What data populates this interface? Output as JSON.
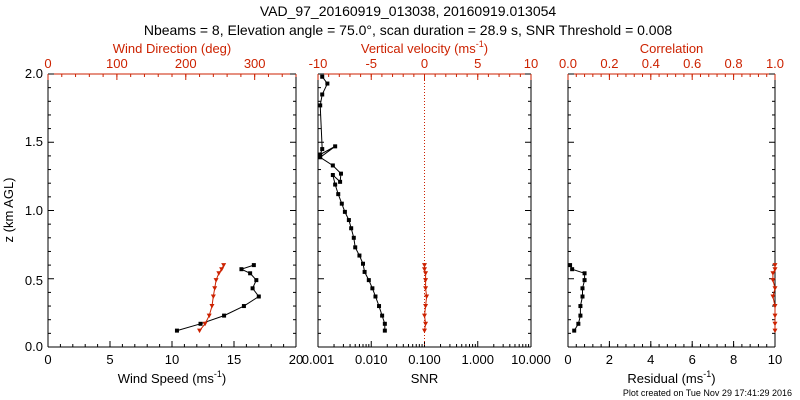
{
  "title_line1": "VAD_97_20160919_013038, 20160919.013054",
  "title_line2": "Nbeams = 8, Elevation angle = 75.0°, scan duration = 28.9 s, SNR Threshold = 0.008",
  "footer": "Plot created on Tue Nov 29 17:41:29 2016",
  "colors": {
    "black": "#000000",
    "red": "#cc2200"
  },
  "chart_data": [
    {
      "type": "line",
      "ylabel": "z (km AGL)",
      "ylim": [
        0,
        2
      ],
      "yticks": [
        "0.0",
        "0.5",
        "1.0",
        "1.5",
        "2.0"
      ],
      "bottom_axis": {
        "label": "Wind Speed (ms",
        "label_sup": "-1",
        "label_end": ")",
        "range": [
          0,
          20
        ],
        "ticks": [
          "0",
          "5",
          "10",
          "15",
          "20"
        ]
      },
      "top_axis": {
        "label": "Wind Direction (deg)",
        "range": [
          0,
          360
        ],
        "ticks": [
          "0",
          "100",
          "200",
          "300"
        ],
        "tick_values": [
          0,
          100,
          200,
          300
        ]
      },
      "series": [
        {
          "axis": "bottom",
          "color": "#000000",
          "marker": "square",
          "x": [
            10.4,
            12.3,
            14.2,
            15.8,
            17.0,
            16.5,
            16.8,
            16.3,
            15.6,
            16.6
          ],
          "y": [
            0.12,
            0.17,
            0.23,
            0.3,
            0.37,
            0.43,
            0.49,
            0.54,
            0.57,
            0.6
          ]
        },
        {
          "axis": "top",
          "color": "#cc2200",
          "marker": "triangle",
          "x": [
            220,
            228,
            234,
            238,
            240,
            242,
            244,
            248,
            252,
            255
          ],
          "y": [
            0.12,
            0.17,
            0.23,
            0.3,
            0.37,
            0.43,
            0.49,
            0.54,
            0.57,
            0.6
          ]
        }
      ]
    },
    {
      "type": "line",
      "ylim": [
        0,
        2
      ],
      "bottom_axis": {
        "label": "SNR",
        "scale": "log",
        "range": [
          0.001,
          10
        ],
        "ticks": [
          "0.001",
          "0.010",
          "0.100",
          "1.000",
          "10.000"
        ]
      },
      "top_axis": {
        "label": "Vertical velocity (ms",
        "label_sup": "-1",
        "label_end": ")",
        "range": [
          -10,
          10
        ],
        "ticks": [
          "-10",
          "-5",
          "0",
          "5",
          "10"
        ],
        "tick_values": [
          -10,
          -5,
          0,
          5,
          10
        ]
      },
      "reference_line": {
        "axis": "top",
        "x": 0,
        "color": "#cc2200",
        "style": "dotted"
      },
      "series": [
        {
          "axis": "bottom",
          "color": "#000000",
          "marker": "square",
          "x": [
            0.018,
            0.018,
            0.016,
            0.014,
            0.012,
            0.0105,
            0.009,
            0.0075,
            0.007,
            0.006,
            0.005,
            0.0047,
            0.0042,
            0.0038,
            0.0032,
            0.0028,
            0.0024,
            0.0021,
            0.0019,
            0.0026,
            0.0027,
            0.0019,
            0.0011,
            0.0021,
            0.0011,
            0.0012,
            0.0011,
            0.0012,
            0.0015,
            0.0012
          ],
          "y": [
            0.12,
            0.17,
            0.23,
            0.3,
            0.37,
            0.43,
            0.49,
            0.55,
            0.61,
            0.67,
            0.73,
            0.8,
            0.87,
            0.93,
            0.99,
            1.05,
            1.12,
            1.19,
            1.26,
            1.21,
            1.27,
            1.33,
            1.39,
            1.47,
            1.41,
            1.45,
            1.77,
            1.85,
            1.93,
            1.98
          ]
        },
        {
          "axis": "top",
          "color": "#cc2200",
          "marker": "triangle",
          "x": [
            0.0,
            0.1,
            0.0,
            0.1,
            0.2,
            0.1,
            0.1,
            0.1,
            0.0,
            0.0
          ],
          "y": [
            0.12,
            0.17,
            0.23,
            0.3,
            0.37,
            0.43,
            0.49,
            0.54,
            0.57,
            0.6
          ]
        }
      ]
    },
    {
      "type": "line",
      "ylim": [
        0,
        2
      ],
      "bottom_axis": {
        "label": "Residual (ms",
        "label_sup": "-1",
        "label_end": ")",
        "range": [
          0,
          10
        ],
        "ticks": [
          "0",
          "2",
          "4",
          "6",
          "8",
          "10"
        ]
      },
      "top_axis": {
        "label": "Correlation",
        "range": [
          0,
          1
        ],
        "ticks": [
          "0.0",
          "0.2",
          "0.4",
          "0.6",
          "0.8",
          "1.0"
        ],
        "tick_values": [
          0,
          0.2,
          0.4,
          0.6,
          0.8,
          1.0
        ]
      },
      "series": [
        {
          "axis": "bottom",
          "color": "#000000",
          "marker": "square",
          "x": [
            0.3,
            0.5,
            0.6,
            0.6,
            0.7,
            0.7,
            0.8,
            0.8,
            0.2,
            0.1
          ],
          "y": [
            0.12,
            0.17,
            0.23,
            0.3,
            0.37,
            0.43,
            0.49,
            0.54,
            0.57,
            0.6
          ]
        },
        {
          "axis": "top",
          "color": "#cc2200",
          "marker": "triangle",
          "x": [
            1.0,
            1.0,
            1.0,
            1.0,
            0.99,
            1.0,
            0.99,
            0.99,
            1.0,
            1.0
          ],
          "y": [
            0.12,
            0.17,
            0.23,
            0.3,
            0.37,
            0.43,
            0.49,
            0.54,
            0.57,
            0.6
          ]
        }
      ]
    }
  ]
}
